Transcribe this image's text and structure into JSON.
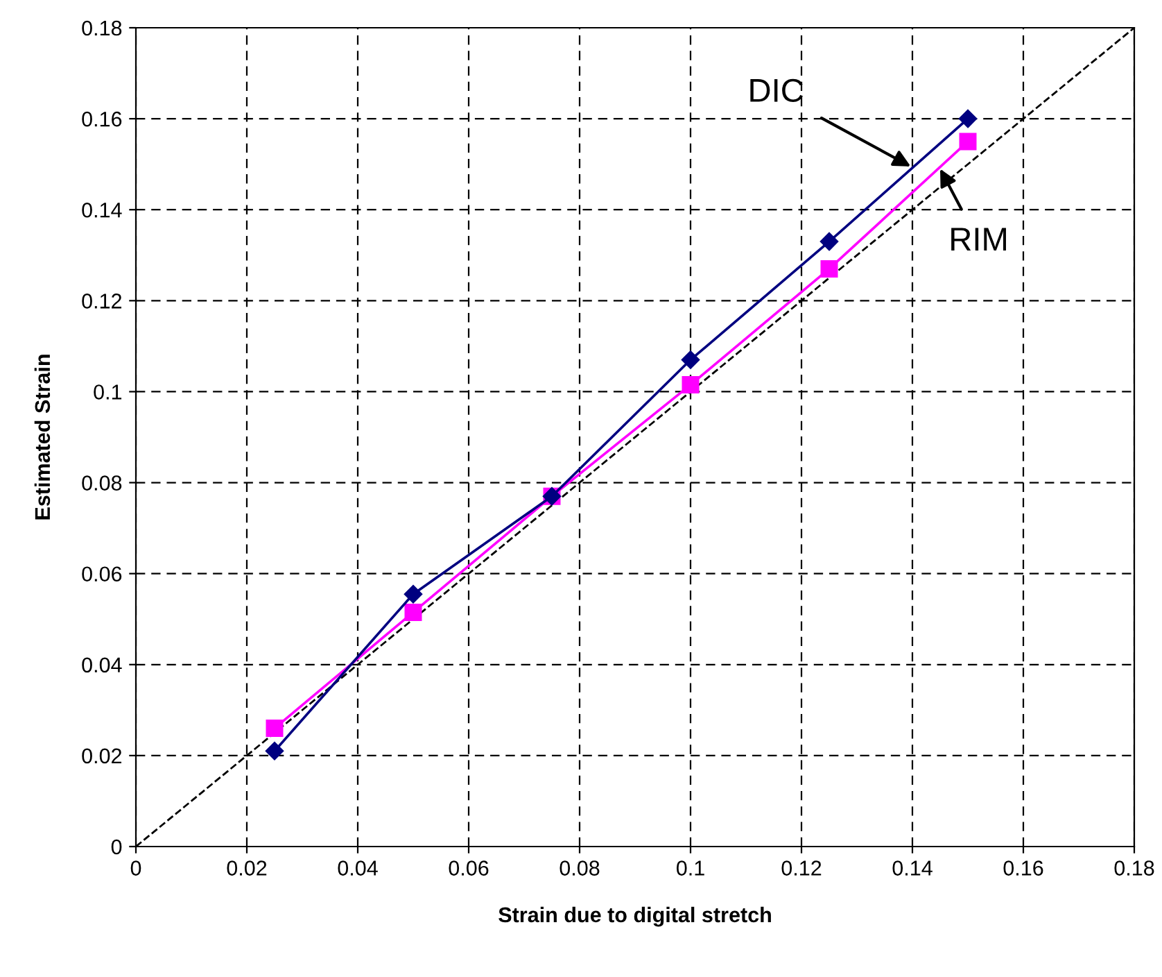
{
  "chart_data": {
    "type": "line",
    "xlabel": "Strain due to digital stretch",
    "ylabel": "Estimated Strain",
    "x": [
      0.025,
      0.05,
      0.075,
      0.1,
      0.125,
      0.15
    ],
    "series": [
      {
        "color": "#000080",
        "marker": "diamond",
        "line_style": "solid",
        "values": [
          0.021,
          0.0555,
          0.077,
          0.107,
          0.133,
          0.16
        ]
      },
      {
        "color": "#ff00ff",
        "marker": "square",
        "line_style": "solid",
        "values": [
          0.026,
          0.0515,
          0.077,
          0.1015,
          0.127,
          0.155
        ]
      },
      {
        "color": "#000000",
        "marker": "none",
        "line_style": "dashed",
        "x": [
          0,
          0.18
        ],
        "values": [
          0,
          0.18
        ]
      }
    ],
    "annotations": [
      {
        "text": "DIC",
        "x": 0.1397,
        "y": 0.1495
      },
      {
        "text": "RIM",
        "x": 0.145,
        "y": 0.149
      }
    ],
    "xlim": [
      0,
      0.18
    ],
    "ylim": [
      0,
      0.18
    ],
    "xticks": [
      0,
      0.02,
      0.04,
      0.06,
      0.08,
      0.1,
      0.12,
      0.14,
      0.16,
      0.18
    ],
    "yticks": [
      0,
      0.02,
      0.04,
      0.06,
      0.08,
      0.1,
      0.12,
      0.14,
      0.16,
      0.18
    ],
    "grid": true,
    "legend": false
  }
}
